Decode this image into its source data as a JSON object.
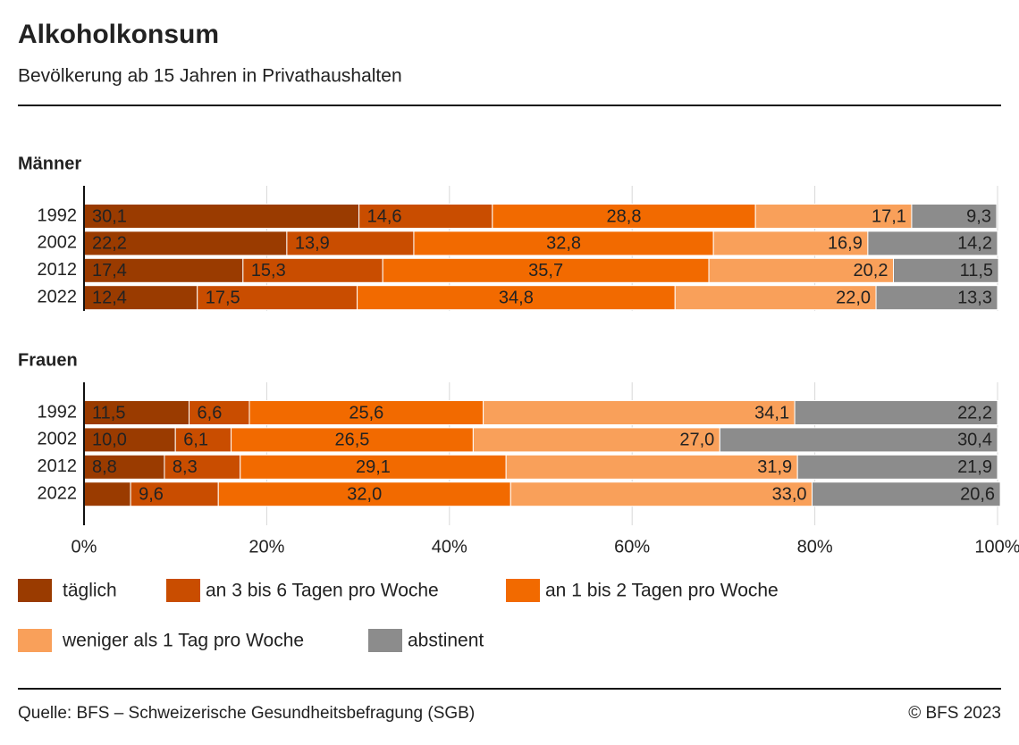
{
  "title": "Alkoholkonsum",
  "subtitle": "Bevölkerung ab 15 Jahren in Privathaushalten",
  "source": "Quelle: BFS – Schweizerische Gesundheitsbefragung (SGB)",
  "copyright": "© BFS 2023",
  "chart_data": [
    {
      "type": "bar",
      "orientation": "horizontal",
      "stacked": true,
      "title": "Männer",
      "categories": [
        "1992",
        "2002",
        "2012",
        "2022"
      ],
      "xlim": [
        0,
        100
      ],
      "xticks": [
        {
          "value": 0,
          "label": "0%"
        },
        {
          "value": 20,
          "label": "20%"
        },
        {
          "value": 40,
          "label": "40%"
        },
        {
          "value": 60,
          "label": "60%"
        },
        {
          "value": 80,
          "label": "80%"
        },
        {
          "value": 100,
          "label": "100%"
        }
      ],
      "grid": true,
      "series": [
        {
          "name": "täglich",
          "color": "#9a3b00",
          "values": [
            30.1,
            22.2,
            17.4,
            12.4
          ],
          "value_labels": [
            "30,1",
            "22,2",
            "17,4",
            "12,4"
          ]
        },
        {
          "name": "an 3 bis 6 Tagen pro Woche",
          "color": "#c94d00",
          "values": [
            14.6,
            13.9,
            15.3,
            17.5
          ],
          "value_labels": [
            "14,6",
            "13,9",
            "15,3",
            "17,5"
          ]
        },
        {
          "name": "an 1 bis 2 Tagen pro Woche",
          "color": "#f26a00",
          "values": [
            28.8,
            32.8,
            35.7,
            34.8
          ],
          "value_labels": [
            "28,8",
            "32,8",
            "35,7",
            "34,8"
          ]
        },
        {
          "name": "weniger als 1 Tag pro Woche",
          "color": "#f9a05a",
          "values": [
            17.1,
            16.9,
            20.2,
            22.0
          ],
          "value_labels": [
            "17,1",
            "16,9",
            "20,2",
            "22,0"
          ]
        },
        {
          "name": "abstinent",
          "color": "#8c8c8c",
          "values": [
            9.3,
            14.2,
            11.5,
            13.3
          ],
          "value_labels": [
            "9,3",
            "14,2",
            "11,5",
            "13,3"
          ]
        }
      ]
    },
    {
      "type": "bar",
      "orientation": "horizontal",
      "stacked": true,
      "title": "Frauen",
      "categories": [
        "1992",
        "2002",
        "2012",
        "2022"
      ],
      "xlim": [
        0,
        100
      ],
      "xticks": [
        {
          "value": 0,
          "label": "0%"
        },
        {
          "value": 20,
          "label": "20%"
        },
        {
          "value": 40,
          "label": "40%"
        },
        {
          "value": 60,
          "label": "60%"
        },
        {
          "value": 80,
          "label": "80%"
        },
        {
          "value": 100,
          "label": "100%"
        }
      ],
      "grid": true,
      "series": [
        {
          "name": "täglich",
          "color": "#9a3b00",
          "values": [
            11.5,
            10.0,
            8.8,
            5.1
          ],
          "value_labels": [
            "11,5",
            "10,0",
            "8,8",
            null
          ]
        },
        {
          "name": "an 3 bis 6 Tagen pro Woche",
          "color": "#c94d00",
          "values": [
            6.6,
            6.1,
            8.3,
            9.6
          ],
          "value_labels": [
            "6,6",
            "6,1",
            "8,3",
            "9,6"
          ]
        },
        {
          "name": "an 1 bis 2 Tagen pro Woche",
          "color": "#f26a00",
          "values": [
            25.6,
            26.5,
            29.1,
            32.0
          ],
          "value_labels": [
            "25,6",
            "26,5",
            "29,1",
            "32,0"
          ]
        },
        {
          "name": "weniger als 1 Tag pro Woche",
          "color": "#f9a05a",
          "values": [
            34.1,
            27.0,
            31.9,
            33.0
          ],
          "value_labels": [
            "34,1",
            "27,0",
            "31,9",
            "33,0"
          ]
        },
        {
          "name": "abstinent",
          "color": "#8c8c8c",
          "values": [
            22.2,
            30.4,
            21.9,
            20.6
          ],
          "value_labels": [
            "22,2",
            "30,4",
            "21,9",
            "20,6"
          ]
        }
      ]
    }
  ]
}
